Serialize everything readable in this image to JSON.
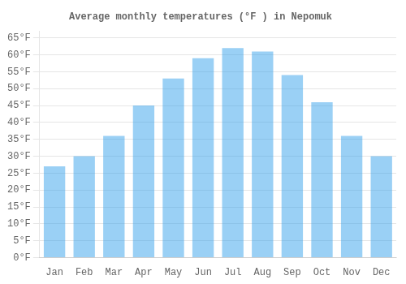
{
  "chart_data": {
    "type": "bar",
    "title": "Average monthly temperatures (°F ) in Nepomuk",
    "categories": [
      "Jan",
      "Feb",
      "Mar",
      "Apr",
      "May",
      "Jun",
      "Jul",
      "Aug",
      "Sep",
      "Oct",
      "Nov",
      "Dec"
    ],
    "values": [
      27,
      30,
      36,
      45,
      53,
      59,
      62,
      61,
      54,
      46,
      36,
      30
    ],
    "ylim": [
      0,
      67
    ],
    "yticks": [
      {
        "value": 0,
        "label": "0°F"
      },
      {
        "value": 5,
        "label": "5°F"
      },
      {
        "value": 10,
        "label": "10°F"
      },
      {
        "value": 15,
        "label": "15°F"
      },
      {
        "value": 20,
        "label": "20°F"
      },
      {
        "value": 25,
        "label": "25°F"
      },
      {
        "value": 30,
        "label": "30°F"
      },
      {
        "value": 35,
        "label": "35°F"
      },
      {
        "value": 40,
        "label": "40°F"
      },
      {
        "value": 45,
        "label": "45°F"
      },
      {
        "value": 50,
        "label": "50°F"
      },
      {
        "value": 55,
        "label": "55°F"
      },
      {
        "value": 60,
        "label": "60°F"
      },
      {
        "value": 65,
        "label": "65°F"
      }
    ],
    "grid": true
  }
}
